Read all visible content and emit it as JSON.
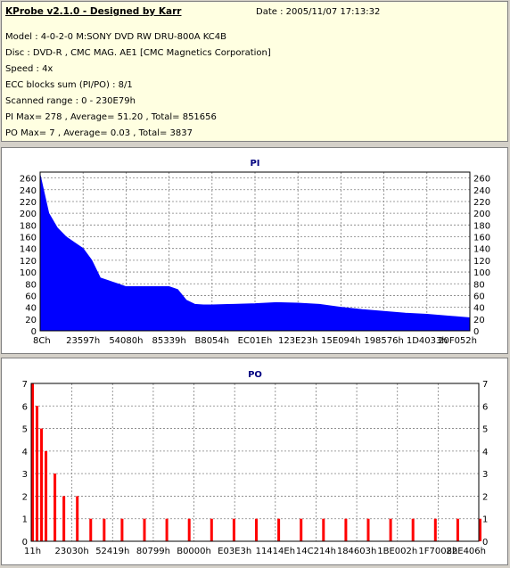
{
  "header": {
    "title": "KProbe v2.1.0 - Designed by Karr",
    "date": "Date : 2005/11/07 17:13:32",
    "lines": [
      "Model : 4-0-2-0 M:SONY    DVD RW DRU-800A  KC4B",
      "Disc : DVD-R , CMC MAG. AE1 [CMC Magnetics Corporation]",
      "Speed : 4x",
      "ECC blocks sum (PI/PO) : 8/1",
      "Scanned range : 0 - 230E79h",
      "PI Max= 278 , Average= 51.20 , Total= 851656",
      "PO Max= 7 , Average= 0.03 , Total= 3837"
    ]
  },
  "colors": {
    "pi": "#0000ff",
    "po": "#ff0000",
    "background": "#d4d0c8",
    "info_bg": "#ffffe1",
    "title": "#000080"
  },
  "chart_data": [
    {
      "type": "area",
      "title": "PI",
      "x_tick_labels": [
        "8Ch",
        "23597h",
        "54080h",
        "85339h",
        "B8054h",
        "EC01Eh",
        "123E23h",
        "15E094h",
        "198576h",
        "1D4033h",
        "20F052h"
      ],
      "y_ticks": [
        0,
        20,
        40,
        60,
        80,
        100,
        120,
        140,
        160,
        180,
        200,
        220,
        240,
        260
      ],
      "ylim": [
        0,
        270
      ],
      "grid": true,
      "x": [
        0,
        0.02,
        0.04,
        0.06,
        0.08,
        0.1,
        0.12,
        0.14,
        0.16,
        0.18,
        0.2,
        0.22,
        0.24,
        0.26,
        0.28,
        0.3,
        0.32,
        0.34,
        0.36,
        0.38,
        0.4,
        0.45,
        0.5,
        0.55,
        0.6,
        0.65,
        0.7,
        0.75,
        0.8,
        0.85,
        0.9,
        0.95,
        1.0
      ],
      "values": [
        265,
        200,
        175,
        160,
        150,
        140,
        120,
        90,
        85,
        80,
        75,
        75,
        75,
        75,
        75,
        75,
        70,
        52,
        45,
        44,
        44,
        45,
        46,
        48,
        47,
        45,
        40,
        36,
        33,
        30,
        28,
        25,
        22
      ]
    },
    {
      "type": "bar",
      "title": "PO",
      "x_tick_labels": [
        "11h",
        "23030h",
        "52419h",
        "80799h",
        "B0000h",
        "E03E3h",
        "11414Eh",
        "14C214h",
        "184603h",
        "1BE002h",
        "1F7008h",
        "22E406h"
      ],
      "y_ticks": [
        0,
        1,
        2,
        3,
        4,
        5,
        6,
        7
      ],
      "ylim": [
        0,
        7
      ],
      "grid": true,
      "x": [
        0,
        0.01,
        0.02,
        0.03,
        0.05,
        0.07,
        0.1,
        0.13,
        0.16,
        0.2,
        0.25,
        0.3,
        0.35,
        0.4,
        0.45,
        0.5,
        0.55,
        0.6,
        0.65,
        0.7,
        0.75,
        0.8,
        0.85,
        0.9,
        0.95,
        1.0
      ],
      "values": [
        7,
        6,
        5,
        4,
        3,
        2,
        2,
        1,
        1,
        1,
        1,
        1,
        1,
        1,
        1,
        1,
        1,
        1,
        1,
        1,
        1,
        1,
        1,
        1,
        1,
        1
      ]
    }
  ]
}
